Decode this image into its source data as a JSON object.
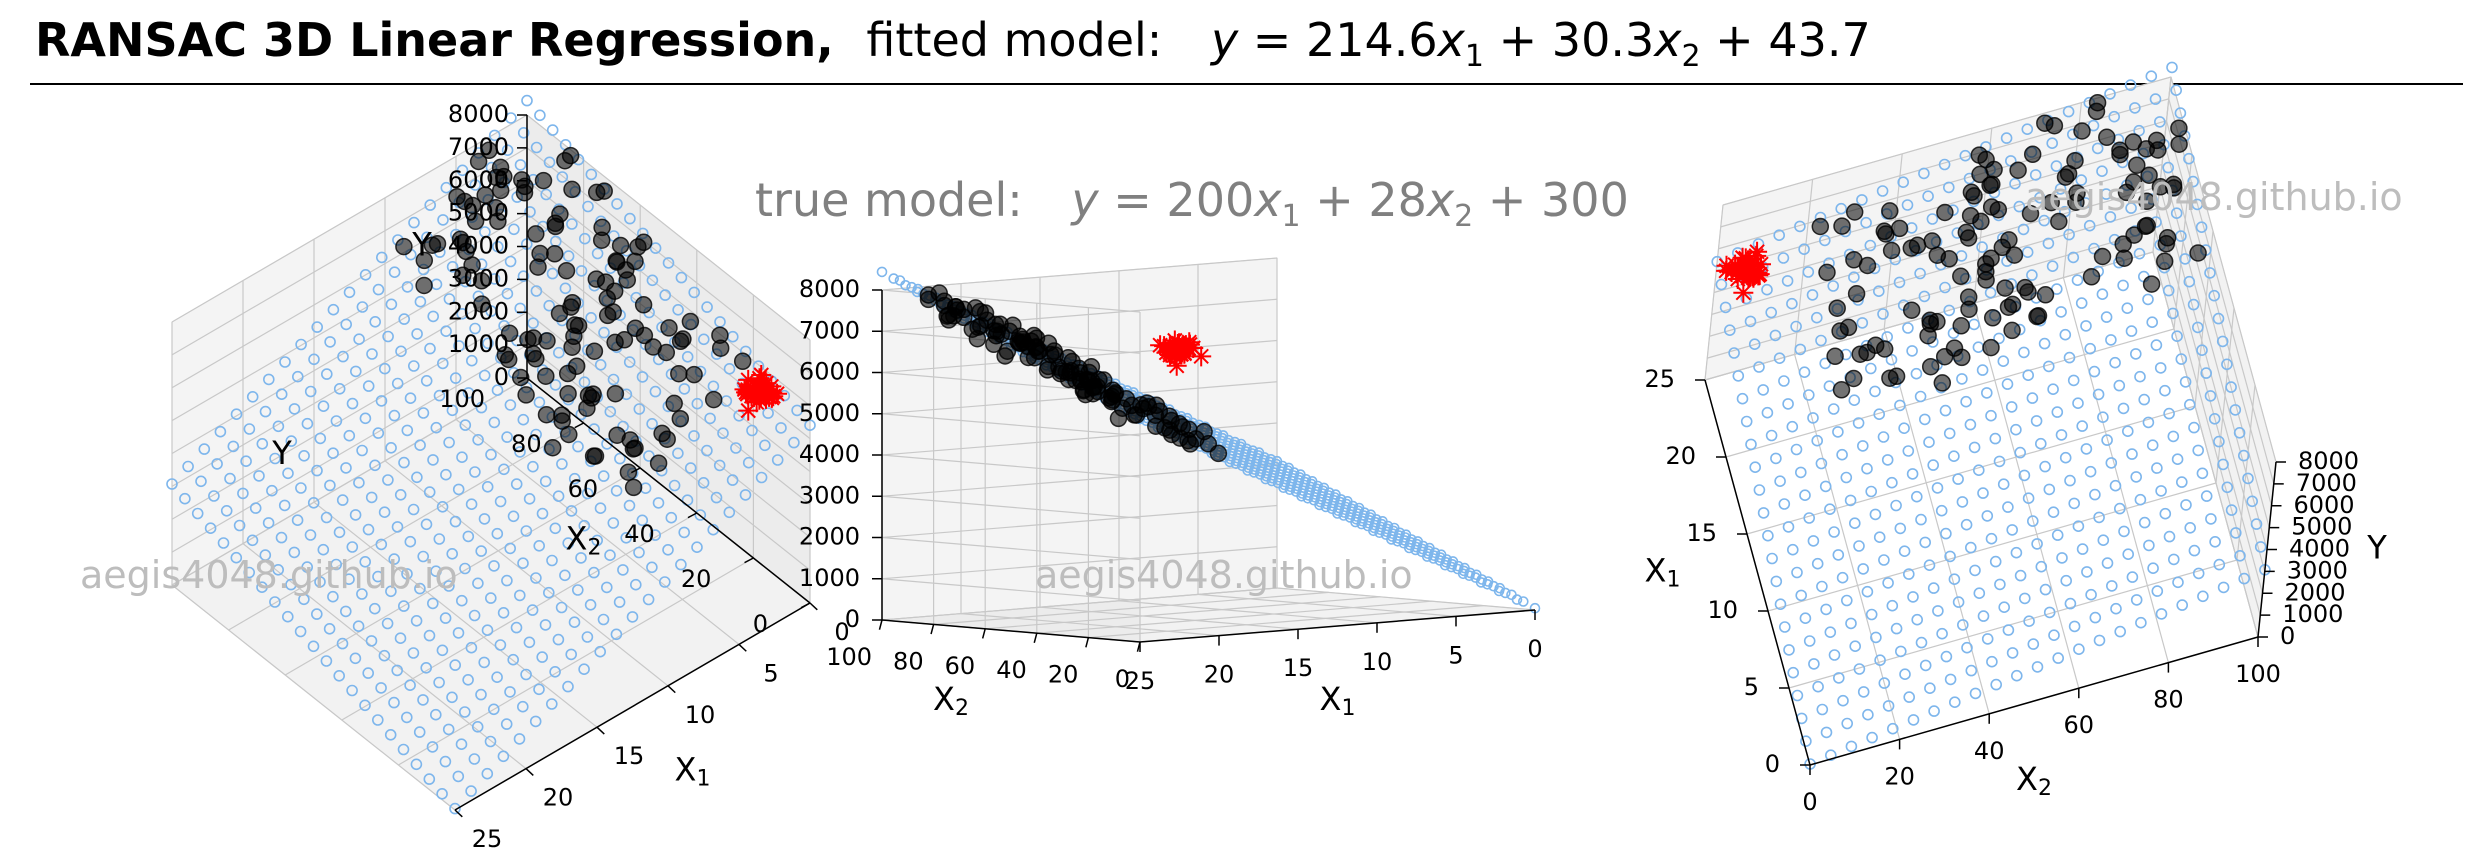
{
  "title": {
    "bold": "RANSAC 3D Linear Regression,",
    "fitted_prefix": "fitted model:",
    "fitted_eq": {
      "a1": "214.6",
      "a2": "30.3",
      "b": "43.7"
    }
  },
  "true_model": {
    "prefix": "true model:",
    "eq": {
      "a1": "200",
      "a2": "28",
      "b": "300"
    }
  },
  "watermark": "aegis4048.github.io",
  "colors": {
    "plane": "#7eb6ec",
    "inliers": "#000000",
    "outliers": "#ff0000",
    "pane": "#f2f2f2",
    "grid": "#c8c8c8"
  },
  "chart_data": {
    "type": "scatter",
    "axes": {
      "x1": {
        "label": "X",
        "sub": "1",
        "range": [
          0,
          25
        ],
        "ticks": [
          "0",
          "5",
          "10",
          "15",
          "20",
          "25"
        ]
      },
      "x2": {
        "label": "X",
        "sub": "2",
        "range": [
          0,
          100
        ],
        "ticks": [
          "0",
          "20",
          "40",
          "60",
          "80",
          "100"
        ]
      },
      "y": {
        "label": "Y",
        "range": [
          0,
          8000
        ],
        "ticks": [
          "0",
          "1000",
          "2000",
          "3000",
          "4000",
          "5000",
          "6000",
          "7000",
          "8000"
        ]
      }
    },
    "grid": true,
    "series": [
      {
        "type": "plane",
        "a1": 214.6,
        "a2": 30.3,
        "b": 43.7
      },
      {
        "type": "inliers",
        "count": 120,
        "x1_range": [
          15,
          25
        ],
        "x2_range": [
          20,
          100
        ]
      },
      {
        "type": "outliers",
        "count": 40,
        "center": [
          22,
          3,
          7000
        ]
      }
    ]
  }
}
